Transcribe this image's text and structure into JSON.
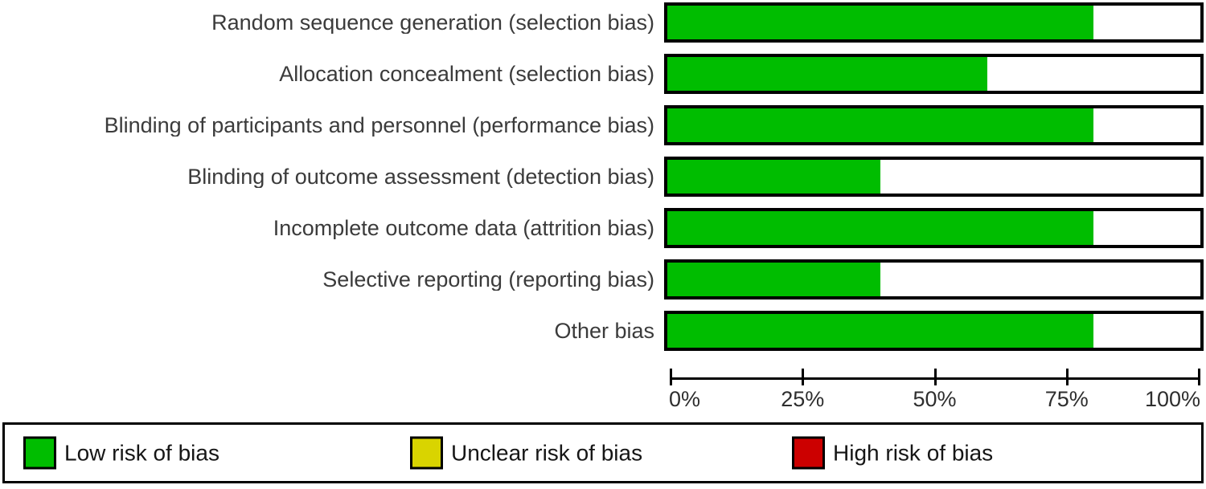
{
  "chart_data": {
    "type": "bar",
    "orientation": "horizontal",
    "categories": [
      "Random sequence generation (selection bias)",
      "Allocation concealment (selection bias)",
      "Blinding of participants and personnel (performance bias)",
      "Blinding of outcome assessment (detection bias)",
      "Incomplete outcome data (attrition bias)",
      "Selective reporting (reporting bias)",
      "Other bias"
    ],
    "series": [
      {
        "name": "Low risk of bias",
        "color": "#00BD00",
        "values": [
          80,
          60,
          80,
          40,
          80,
          40,
          80
        ]
      },
      {
        "name": "Unclear risk of bias",
        "color": "#D9D400",
        "values": [
          0,
          0,
          0,
          0,
          0,
          0,
          0
        ]
      },
      {
        "name": "High risk of bias",
        "color": "#CC0000",
        "values": [
          0,
          0,
          0,
          0,
          0,
          0,
          0
        ]
      }
    ],
    "xlim": [
      0,
      100
    ],
    "x_tick_labels": [
      "0%",
      "25%",
      "50%",
      "75%",
      "100%"
    ],
    "grid": false,
    "legend_position": "bottom",
    "bar_background": "#FFFFFF",
    "bar_border_color": "#000000"
  },
  "legend": {
    "items": [
      {
        "label": "Low risk of bias",
        "color": "#00BD00"
      },
      {
        "label": "Unclear risk of bias",
        "color": "#D9D400"
      },
      {
        "label": "High risk of bias",
        "color": "#CC0000"
      }
    ]
  }
}
